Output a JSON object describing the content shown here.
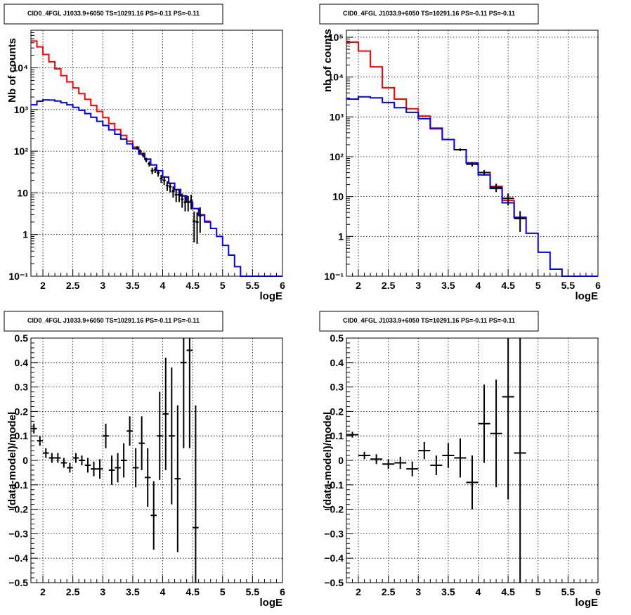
{
  "chart_data": [
    {
      "type": "line",
      "title": "CID0_4FGL J1033.9+6050 TS=10291.16 PS=-0.11 PS=-0.11",
      "xlabel": "logE",
      "ylabel": "Nb of counts",
      "xlim": [
        1.8,
        6.0
      ],
      "ylim": [
        0.1,
        80000
      ],
      "yscale": "log",
      "xticks": [
        "2",
        "2.5",
        "3",
        "3.5",
        "4",
        "4.5",
        "5",
        "5.5",
        "6"
      ],
      "yticks": [
        "10⁻¹",
        "1",
        "10",
        "10²",
        "10³",
        "10⁴"
      ],
      "grid": true,
      "series": [
        {
          "color": "#ff0000",
          "style": "step",
          "bin_width": 0.1,
          "x": [
            1.8,
            1.9,
            2.0,
            2.1,
            2.2,
            2.3,
            2.4,
            2.5,
            2.6,
            2.7,
            2.8,
            2.9,
            3.0,
            3.1,
            3.2,
            3.3,
            3.4,
            3.5,
            3.6,
            3.7,
            3.8,
            3.9,
            4.0,
            4.1,
            4.2,
            4.3,
            4.4,
            4.5,
            4.6,
            4.7
          ],
          "values": [
            44000,
            32000,
            21000,
            14000,
            9500,
            6500,
            4600,
            3300,
            2400,
            1750,
            1250,
            900,
            640,
            460,
            330,
            240,
            175,
            125,
            90,
            65,
            47,
            34,
            24,
            17,
            12,
            8.5,
            6,
            4.2,
            3,
            2.1
          ]
        },
        {
          "color": "#0000ff",
          "style": "step",
          "bin_width": 0.1,
          "x": [
            1.8,
            1.9,
            2.0,
            2.1,
            2.2,
            2.3,
            2.4,
            2.5,
            2.6,
            2.7,
            2.8,
            2.9,
            3.0,
            3.1,
            3.2,
            3.3,
            3.4,
            3.5,
            3.6,
            3.7,
            3.8,
            3.9,
            4.0,
            4.1,
            4.2,
            4.3,
            4.4,
            4.5,
            4.6,
            4.7,
            4.8,
            4.9,
            5.0,
            5.1,
            5.2,
            5.3,
            5.4,
            5.5,
            5.6,
            5.7,
            5.8,
            5.9
          ],
          "values": [
            1300,
            1580,
            1700,
            1690,
            1600,
            1460,
            1300,
            1130,
            960,
            800,
            650,
            520,
            415,
            325,
            255,
            195,
            150,
            115,
            85,
            64,
            47,
            34,
            24,
            17,
            12,
            8.5,
            6,
            4.2,
            2.9,
            2,
            1.4,
            0.9,
            0.55,
            0.32,
            0.17,
            0.1,
            0.1,
            0.1,
            0.1,
            0.1,
            0.1,
            0.1
          ]
        },
        {
          "color": "#000000",
          "style": "errorbar",
          "bin_width": 0.05,
          "x": [
            3.575,
            3.625,
            3.675,
            3.725,
            3.775,
            3.825,
            3.875,
            3.925,
            3.975,
            4.025,
            4.075,
            4.125,
            4.175,
            4.225,
            4.275,
            4.325,
            4.375,
            4.425,
            4.475,
            4.525,
            4.575,
            4.625
          ],
          "values": [
            120,
            100,
            80,
            62,
            50,
            34,
            36,
            30,
            22,
            20,
            15,
            14,
            11,
            9,
            9,
            7,
            6,
            6,
            6.5,
            2.1,
            2,
            2.8
          ],
          "errors": [
            11,
            10,
            9,
            8,
            7,
            6,
            6,
            5.5,
            4.7,
            4.5,
            3.9,
            3.7,
            3.3,
            3,
            3,
            2.6,
            2.4,
            2.4,
            2.5,
            1.45,
            1.4,
            1.7
          ]
        }
      ]
    },
    {
      "type": "line",
      "title": "CID0_4FGL J1033.9+6050 TS=10291.16 PS=-0.11 PS=-0.11",
      "xlabel": "logE",
      "ylabel": "nb of counts",
      "xlim": [
        1.8,
        6.0
      ],
      "ylim": [
        0.1,
        150000
      ],
      "yscale": "log",
      "xticks": [
        "2",
        "2.5",
        "3",
        "3.5",
        "4",
        "4.5",
        "5",
        "5.5",
        "6"
      ],
      "yticks": [
        "10⁻¹",
        "1",
        "10",
        "10²",
        "10³",
        "10⁴",
        "10⁵"
      ],
      "grid": true,
      "series": [
        {
          "color": "#ff0000",
          "style": "step",
          "bin_width": 0.2,
          "x": [
            1.8,
            2.0,
            2.2,
            2.4,
            2.6,
            2.8,
            3.0,
            3.2,
            3.4,
            3.6,
            3.8,
            4.0,
            4.2,
            4.4,
            4.6
          ],
          "values": [
            75000,
            45000,
            18000,
            5400,
            2800,
            1600,
            1050,
            500,
            270,
            150,
            70,
            40,
            18,
            8,
            3
          ]
        },
        {
          "color": "#0000ff",
          "style": "step",
          "bin_width": 0.2,
          "x": [
            1.8,
            2.0,
            2.2,
            2.4,
            2.6,
            2.8,
            3.0,
            3.2,
            3.4,
            3.6,
            3.8,
            4.0,
            4.2,
            4.4,
            4.6,
            4.8,
            5.0,
            5.2,
            5.4,
            5.6,
            5.8
          ],
          "values": [
            2800,
            3200,
            3000,
            2300,
            1700,
            1300,
            900,
            520,
            270,
            150,
            70,
            35,
            16,
            7,
            3,
            1.2,
            0.4,
            0.15,
            0.1,
            0.1,
            0.1
          ]
        },
        {
          "color": "#000000",
          "style": "errorbar",
          "bin_width": 0.2,
          "x": [
            3.7,
            3.9,
            4.1,
            4.3,
            4.5,
            4.7
          ],
          "values": [
            150,
            65,
            40,
            17,
            9,
            2.8
          ],
          "errors": [
            12,
            8,
            6,
            4,
            3,
            1.5
          ]
        }
      ]
    },
    {
      "type": "scatter",
      "title": "CID0_4FGL J1033.9+6050 TS=10291.16 PS=-0.11 PS=-0.11",
      "xlabel": "logE",
      "ylabel": "(data-model)/model",
      "xlim": [
        1.8,
        6.0
      ],
      "ylim": [
        -0.5,
        0.5
      ],
      "xticks": [
        "2",
        "2.5",
        "3",
        "3.5",
        "4",
        "4.5",
        "5",
        "5.5",
        "6"
      ],
      "yticks": [
        "−0.5",
        "−0.4",
        "−0.3",
        "−0.2",
        "−0.1",
        "0",
        "0.1",
        "0.2",
        "0.3",
        "0.4",
        "0.5"
      ],
      "grid": true,
      "series": [
        {
          "color": "#000000",
          "style": "errorbar",
          "bin_width": 0.1,
          "x": [
            1.85,
            1.95,
            2.05,
            2.15,
            2.25,
            2.35,
            2.45,
            2.55,
            2.65,
            2.75,
            2.85,
            2.95,
            3.05,
            3.15,
            3.25,
            3.35,
            3.45,
            3.55,
            3.65,
            3.75,
            3.85,
            3.95,
            4.05,
            4.15,
            4.25,
            4.35,
            4.45,
            4.55
          ],
          "values": [
            0.13,
            0.08,
            0.03,
            0.01,
            0.01,
            -0.01,
            -0.03,
            0.01,
            0.0,
            -0.02,
            -0.035,
            -0.035,
            0.1,
            -0.04,
            -0.03,
            0.0,
            0.12,
            -0.03,
            0.07,
            -0.07,
            -0.225,
            0.1,
            0.19,
            0.1,
            -0.075,
            0.4,
            0.45,
            -0.275
          ],
          "errors": [
            0.02,
            0.02,
            0.02,
            0.02,
            0.02,
            0.02,
            0.02,
            0.02,
            0.02,
            0.03,
            0.03,
            0.04,
            0.05,
            0.06,
            0.06,
            0.07,
            0.06,
            0.08,
            0.11,
            0.12,
            0.14,
            0.18,
            0.23,
            0.28,
            0.3,
            0.35,
            0.4,
            0.5
          ]
        }
      ]
    },
    {
      "type": "scatter",
      "title": "CID0_4FGL J1033.9+6050 TS=10291.16 PS=-0.11 PS=-0.11",
      "xlabel": "logE",
      "ylabel": "(data-model)/model",
      "xlim": [
        1.8,
        6.0
      ],
      "ylim": [
        -0.5,
        0.5
      ],
      "xticks": [
        "2",
        "2.5",
        "3",
        "3.5",
        "4",
        "4.5",
        "5",
        "5.5",
        "6"
      ],
      "yticks": [
        "−0.5",
        "−0.4",
        "−0.3",
        "−0.2",
        "−0.1",
        "0",
        "0.1",
        "0.2",
        "0.3",
        "0.4",
        "0.5"
      ],
      "grid": true,
      "series": [
        {
          "color": "#000000",
          "style": "errorbar",
          "bin_width": 0.2,
          "x": [
            1.9,
            2.1,
            2.3,
            2.5,
            2.7,
            2.9,
            3.1,
            3.3,
            3.5,
            3.7,
            3.9,
            4.1,
            4.3,
            4.5,
            4.7
          ],
          "values": [
            0.105,
            0.02,
            0.005,
            -0.015,
            -0.01,
            -0.035,
            0.04,
            -0.02,
            0.02,
            0.01,
            -0.09,
            0.15,
            0.11,
            0.26,
            0.03
          ],
          "errors": [
            0.012,
            0.015,
            0.02,
            0.02,
            0.025,
            0.03,
            0.035,
            0.04,
            0.05,
            0.08,
            0.11,
            0.16,
            0.22,
            0.42,
            0.55
          ]
        }
      ]
    }
  ]
}
